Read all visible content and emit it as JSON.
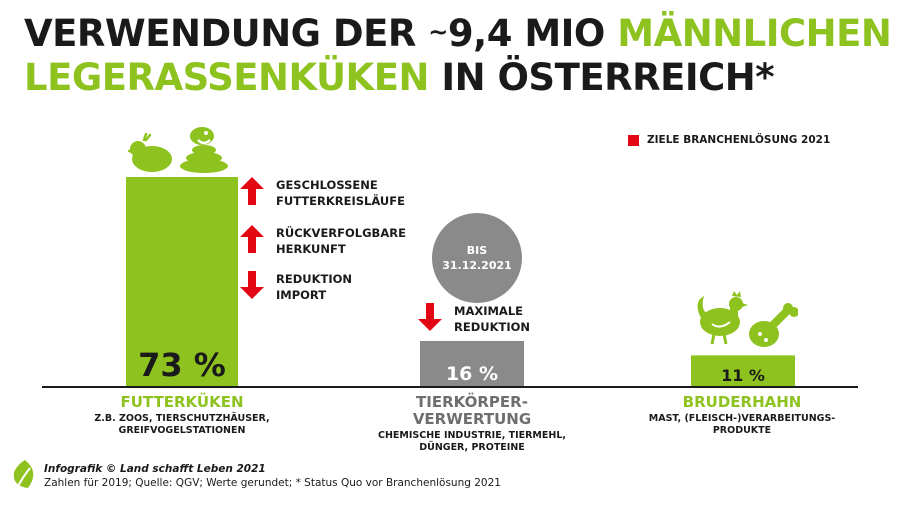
{
  "title": {
    "line1_black": "VERWENDUNG DER ",
    "line1_tilde": "~",
    "line1_number": "9,4 MIO ",
    "line1_green": "MÄNNLICHEN",
    "line2_green": "LEGERASSENKÜKEN ",
    "line2_black": "IN ÖSTERREICH*"
  },
  "legend": {
    "label": "ZIELE BRANCHENLÖSUNG 2021",
    "color": "#e30613"
  },
  "chart_data": {
    "type": "bar",
    "categories": [
      "FUTTERKÜKEN",
      "TIERKÖRPER-VERWERTUNG",
      "BRUDERHAHN"
    ],
    "values": [
      73,
      16,
      11
    ],
    "value_labels": [
      "73 %",
      "16 %",
      "11 %"
    ],
    "unit": "%",
    "ylim": [
      0,
      100
    ],
    "colors": [
      "#8dc21f",
      "#8a8a8a",
      "#8dc21f"
    ]
  },
  "categories": [
    {
      "name": "FUTTERKÜKEN",
      "sub": "Z.B. ZOOS, TIERSCHUTZHÄUSER,\nGREIFVOGELSTATIONEN",
      "color": "#8dc21f"
    },
    {
      "name": "TIERKÖRPER-\nVERWERTUNG",
      "sub": "CHEMISCHE INDUSTRIE, TIERMEHL,\nDÜNGER, PROTEINE",
      "color": "#6e6e6e"
    },
    {
      "name": "BRUDERHAHN",
      "sub": "MAST, (FLEISCH-)VERARBEITUNGS-\nPRODUKTE",
      "color": "#8dc21f"
    }
  ],
  "goals": [
    {
      "direction": "up",
      "text": "GESCHLOSSENE\nFUTTERKREISLÄUFE"
    },
    {
      "direction": "up",
      "text": "RÜCKVERFOLGBARE\nHERKUNFT"
    },
    {
      "direction": "down",
      "text": "REDUKTION\nIMPORT"
    },
    {
      "direction": "down",
      "text": "MAXIMALE\nREDUKTION"
    }
  ],
  "badge": {
    "line1": "BIS",
    "line2": "31.12.2021"
  },
  "icons": [
    "chick-icon",
    "snake-icon",
    "rooster-icon",
    "chicken-leg-icon",
    "leaf-logo-icon"
  ],
  "footer": {
    "credit": "Infografik © Land schafft Leben 2021",
    "source": "Zahlen für 2019; Quelle: QGV; Werte gerundet; * Status Quo vor Branchenlösung 2021"
  }
}
